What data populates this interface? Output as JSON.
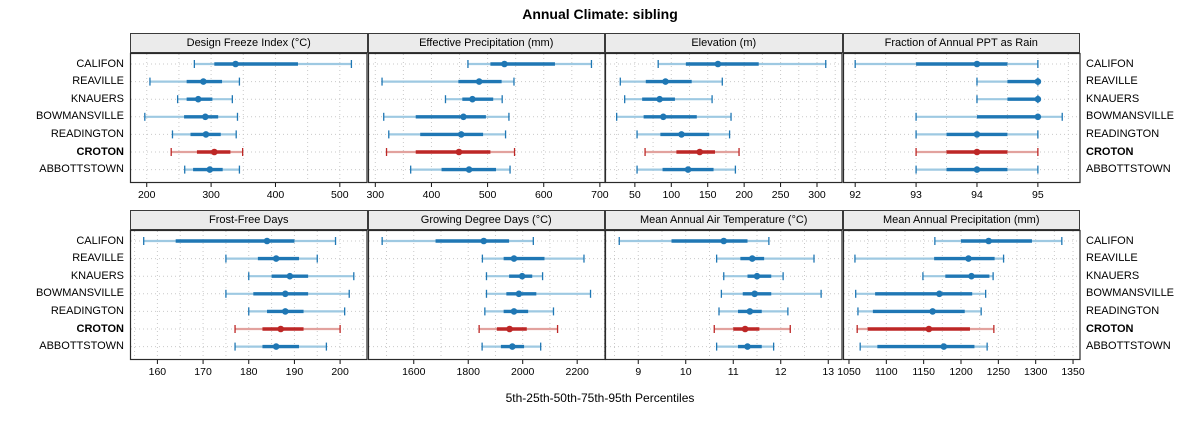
{
  "colors": {
    "blue": "#1f77b4",
    "blue_light": "#9ec9e2",
    "red": "#bd2726",
    "red_light": "#e2a29e",
    "strip_bg": "#ebebeb",
    "grid": "#c9c9c9",
    "border": "#2a2a2a",
    "text": "#000000"
  },
  "chart_data": {
    "type": "scatter",
    "subtype": "percentile-interval-dotplot (trellis, 2x4 panels)",
    "title": "Annual Climate: sibling",
    "xlabel": "5th-25th-50th-75th-95th Percentiles",
    "percentile_labels": [
      "p5",
      "p25",
      "p50",
      "p75",
      "p95"
    ],
    "locations": [
      "CALIFON",
      "REAVILLE",
      "KNAUERS",
      "BOWMANSVILLE",
      "READINGTON",
      "CROTON",
      "ABBOTTSTOWN"
    ],
    "highlight": "CROTON",
    "layout_hint": {
      "rows": 2,
      "cols": 4,
      "grid": "dotted",
      "row_labels_on_both_sides": true,
      "legend": "none"
    },
    "panels": [
      {
        "name": "Design Freeze Index (°C)",
        "xlim": [
          174,
          543
        ],
        "ticks": [
          200,
          300,
          400,
          500
        ],
        "values": [
          [
            274,
            305,
            338,
            435,
            518
          ],
          [
            205,
            262,
            288,
            317,
            344
          ],
          [
            248,
            262,
            280,
            302,
            333
          ],
          [
            197,
            258,
            291,
            311,
            341
          ],
          [
            240,
            268,
            292,
            315,
            339
          ],
          [
            238,
            278,
            305,
            330,
            349
          ],
          [
            259,
            272,
            298,
            318,
            344
          ]
        ]
      },
      {
        "name": "Effective Precipitation (mm)",
        "xlim": [
          287,
          710
        ],
        "ticks": [
          300,
          400,
          500,
          600,
          700
        ],
        "values": [
          [
            465,
            505,
            530,
            620,
            685
          ],
          [
            312,
            448,
            485,
            525,
            547
          ],
          [
            425,
            455,
            473,
            510,
            526
          ],
          [
            315,
            372,
            457,
            497,
            538
          ],
          [
            324,
            380,
            453,
            492,
            532
          ],
          [
            320,
            372,
            449,
            505,
            548
          ],
          [
            363,
            418,
            467,
            515,
            540
          ]
        ]
      },
      {
        "name": "Elevation (m)",
        "xlim": [
          9,
          335
        ],
        "ticks": [
          50,
          100,
          150,
          200,
          250,
          300
        ],
        "values": [
          [
            82,
            120,
            164,
            220,
            312
          ],
          [
            30,
            65,
            92,
            128,
            170
          ],
          [
            36,
            60,
            84,
            105,
            156
          ],
          [
            25,
            62,
            89,
            135,
            182
          ],
          [
            53,
            85,
            114,
            152,
            180
          ],
          [
            64,
            107,
            139,
            160,
            193
          ],
          [
            53,
            88,
            123,
            158,
            188
          ]
        ]
      },
      {
        "name": "Fraction of Annual PPT as Rain",
        "xlim": [
          91.8,
          95.7
        ],
        "ticks": [
          92,
          93,
          94,
          95
        ],
        "values": [
          [
            92,
            93,
            94,
            94.5,
            95
          ],
          [
            94,
            94.5,
            95,
            95,
            95
          ],
          [
            94,
            94.5,
            95,
            95,
            95
          ],
          [
            93,
            94,
            95,
            95,
            95.4
          ],
          [
            93,
            93.5,
            94,
            94.5,
            95
          ],
          [
            93,
            93.5,
            94,
            94.5,
            95
          ],
          [
            93,
            93.5,
            94,
            94.5,
            95
          ]
        ]
      },
      {
        "name": "Frost-Free Days",
        "xlim": [
          154,
          206
        ],
        "ticks": [
          160,
          170,
          180,
          190,
          200
        ],
        "values": [
          [
            157,
            164,
            184,
            190,
            199
          ],
          [
            175,
            182,
            186,
            191,
            195
          ],
          [
            180,
            185,
            189,
            193,
            203
          ],
          [
            175,
            181,
            188,
            193,
            202
          ],
          [
            180,
            184,
            188,
            192,
            201
          ],
          [
            177,
            183,
            187,
            192,
            200
          ],
          [
            177,
            183,
            186,
            191,
            197
          ]
        ]
      },
      {
        "name": "Growing Degree Days (°C)",
        "xlim": [
          1432,
          2304
        ],
        "ticks": [
          1600,
          1800,
          2000,
          2200
        ],
        "values": [
          [
            1484,
            1680,
            1857,
            1950,
            2039
          ],
          [
            1852,
            1930,
            1968,
            2080,
            2225
          ],
          [
            1867,
            1950,
            1998,
            2035,
            2073
          ],
          [
            1867,
            1940,
            1986,
            2050,
            2249
          ],
          [
            1861,
            1930,
            1968,
            2020,
            2113
          ],
          [
            1840,
            1905,
            1952,
            2015,
            2128
          ],
          [
            1851,
            1920,
            1962,
            2005,
            2066
          ]
        ]
      },
      {
        "name": "Mean Annual Air Temperature (°C)",
        "xlim": [
          8.3,
          13.3
        ],
        "ticks": [
          9,
          10,
          11,
          12,
          13
        ],
        "values": [
          [
            8.6,
            9.7,
            10.8,
            11.3,
            11.75
          ],
          [
            10.65,
            11.15,
            11.4,
            11.65,
            12.7
          ],
          [
            10.8,
            11.3,
            11.5,
            11.8,
            12.05
          ],
          [
            10.75,
            11.2,
            11.45,
            11.8,
            12.85
          ],
          [
            10.7,
            11.1,
            11.35,
            11.6,
            12.15
          ],
          [
            10.6,
            11.0,
            11.25,
            11.55,
            12.2
          ],
          [
            10.65,
            11.1,
            11.3,
            11.6,
            11.85
          ]
        ]
      },
      {
        "name": "Mean Annual Precipitation (mm)",
        "xlim": [
          1042,
          1360
        ],
        "ticks": [
          1050,
          1100,
          1150,
          1200,
          1250,
          1300,
          1350
        ],
        "values": [
          [
            1165,
            1200,
            1237,
            1295,
            1335
          ],
          [
            1058,
            1164,
            1210,
            1245,
            1257
          ],
          [
            1149,
            1179,
            1214,
            1238,
            1243
          ],
          [
            1059,
            1085,
            1171,
            1215,
            1233
          ],
          [
            1062,
            1082,
            1162,
            1205,
            1227
          ],
          [
            1061,
            1075,
            1157,
            1212,
            1244
          ],
          [
            1065,
            1088,
            1177,
            1218,
            1235
          ]
        ]
      }
    ]
  }
}
